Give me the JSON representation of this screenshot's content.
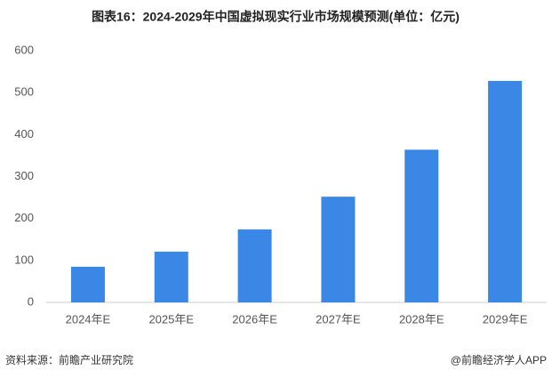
{
  "chart_data": {
    "type": "bar",
    "title": "图表16：2024-2029年中国虚拟现实行业市场规模预测(单位：亿元)",
    "categories": [
      "2024年E",
      "2025年E",
      "2026年E",
      "2027年E",
      "2028年E",
      "2029年E"
    ],
    "values": [
      85,
      121,
      174,
      252,
      364,
      528
    ],
    "color": "#3a87e6",
    "ylim": [
      0,
      600
    ],
    "yticks": [
      0,
      100,
      200,
      300,
      400,
      500,
      600
    ],
    "grid": false
  },
  "footer": {
    "source": "资料来源：前瞻产业研究院",
    "credit": "@前瞻经济学人APP"
  }
}
